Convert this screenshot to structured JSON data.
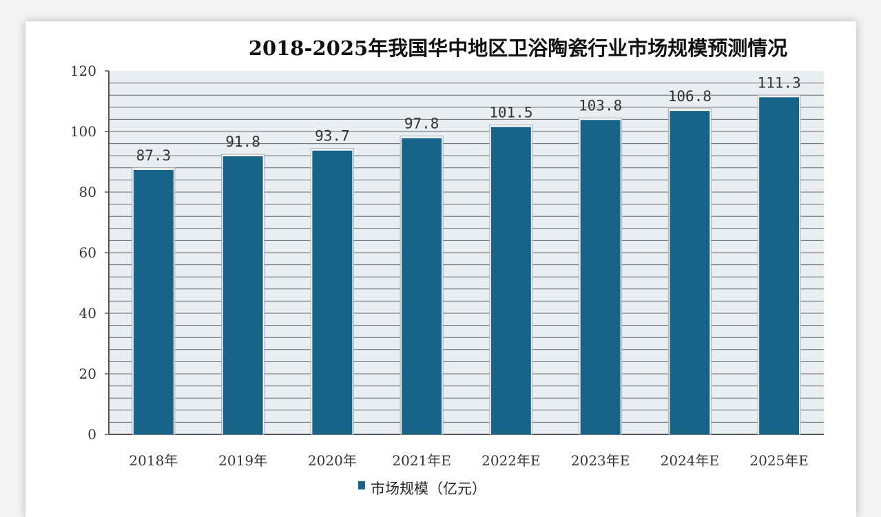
{
  "chart_data": {
    "type": "bar",
    "title": "2018-2025年我国华中地区卫浴陶瓷行业市场规模预测情况",
    "categories": [
      "2018年",
      "2019年",
      "2020年",
      "2021年E",
      "2022年E",
      "2023年E",
      "2024年E",
      "2025年E"
    ],
    "series": [
      {
        "name": "市场规模（亿元）",
        "values": [
          87.3,
          91.8,
          93.7,
          97.8,
          101.5,
          103.8,
          106.8,
          111.3
        ]
      }
    ],
    "data_labels": [
      "87.3",
      "91.8",
      "93.7",
      "97.8",
      "101.5",
      "103.8",
      "106.8",
      "111.3"
    ],
    "xlabel": "",
    "ylabel": "",
    "ylim": [
      0,
      120
    ],
    "yticks": [
      "0",
      "20",
      "40",
      "60",
      "80",
      "100",
      "120"
    ],
    "grid": true,
    "legend": "bottom",
    "colors": {
      "bar": "#16648a",
      "plot_bg": "#e9eef3",
      "grid": "#666666"
    }
  }
}
